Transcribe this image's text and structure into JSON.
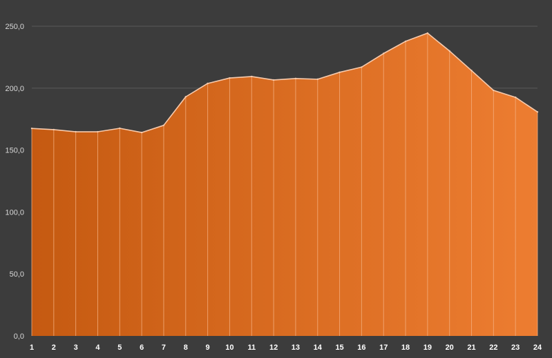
{
  "chart_data": {
    "type": "area",
    "categories": [
      "1",
      "2",
      "3",
      "4",
      "5",
      "6",
      "7",
      "8",
      "9",
      "10",
      "11",
      "12",
      "13",
      "14",
      "15",
      "16",
      "17",
      "18",
      "19",
      "20",
      "21",
      "22",
      "23",
      "24"
    ],
    "series": [
      {
        "values": [
          167.5,
          166.5,
          164.8,
          164.8,
          167.6,
          164.2,
          170.0,
          193.0,
          203.8,
          208.2,
          209.4,
          206.6,
          207.8,
          207.2,
          212.8,
          217.0,
          228.0,
          237.8,
          244.4,
          230.0,
          214.2,
          198.2,
          192.6,
          180.8
        ]
      }
    ],
    "y_ticks": [
      "0,0",
      "50,0",
      "100,0",
      "150,0",
      "200,0",
      "250,0"
    ],
    "ylim": [
      0,
      250
    ],
    "grid": true,
    "legend": "none",
    "title": "",
    "xlabel": "",
    "ylabel": "",
    "colors": {
      "background": "#3c3c3c",
      "grid": "#5a5a5a",
      "fill_start": "#c55a11",
      "fill_end": "#ed7d31",
      "line": "#f8cbad",
      "divider": "#f4b183"
    }
  }
}
